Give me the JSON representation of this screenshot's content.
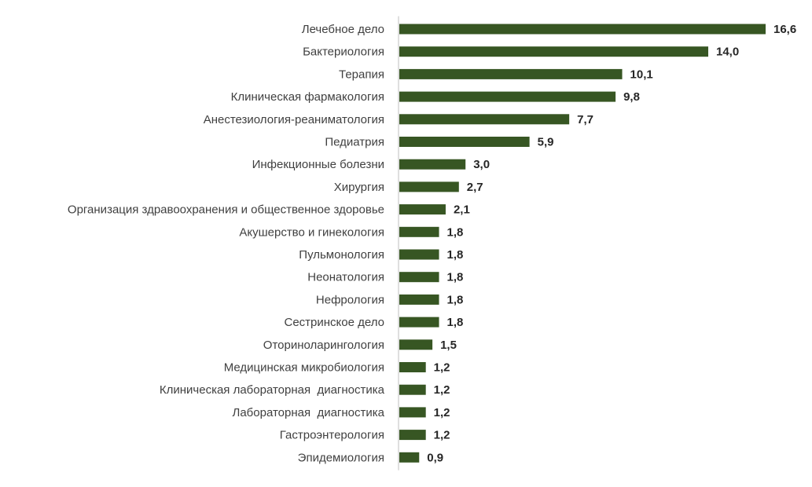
{
  "colors": {
    "bar": "#375623",
    "axis": "#bfbfbf",
    "category_text": "#404040",
    "value_text": "#262626"
  },
  "chart_data": {
    "type": "bar",
    "orientation": "horizontal",
    "title": "",
    "xlabel": "",
    "ylabel": "",
    "grid": false,
    "legend": "none",
    "xlim": [
      0,
      16.6
    ],
    "categories": [
      "Лечебное дело",
      "Бактериология",
      "Терапия",
      "Клиническая фармакология",
      "Анестезиология-реаниматология",
      "Педиатрия",
      "Инфекционные болезни",
      "Хирургия",
      "Организация здравоохранения и общественное здоровье",
      "Акушерство и гинекология",
      "Пульмонология",
      "Неонатология",
      "Нефрология",
      "Сестринское дело",
      "Оториноларингология",
      "Медицинская микробиология",
      "Клиническая лабораторная  диагностика",
      "Лабораторная  диагностика",
      "Гастроэнтерология",
      "Эпидемиология"
    ],
    "values": [
      16.6,
      14.0,
      10.1,
      9.8,
      7.7,
      5.9,
      3.0,
      2.7,
      2.1,
      1.8,
      1.8,
      1.8,
      1.8,
      1.8,
      1.5,
      1.2,
      1.2,
      1.2,
      1.2,
      0.9
    ],
    "value_labels": [
      "16,6",
      "14,0",
      "10,1",
      "9,8",
      "7,7",
      "5,9",
      "3,0",
      "2,7",
      "2,1",
      "1,8",
      "1,8",
      "1,8",
      "1,8",
      "1,8",
      "1,5",
      "1,2",
      "1,2",
      "1,2",
      "1,2",
      "0,9"
    ]
  }
}
